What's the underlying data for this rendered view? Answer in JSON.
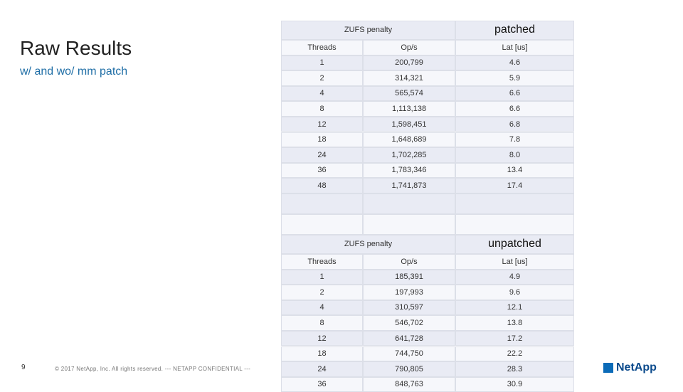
{
  "slide": {
    "title": "Raw Results",
    "subtitle": "w/ and wo/ mm patch",
    "page_number": "9",
    "footer": "© 2017 NetApp, Inc. All rights reserved. --- NETAPP CONFIDENTIAL ---",
    "logo": "NetApp"
  },
  "tables": [
    {
      "caption": "ZUFS penalty",
      "variant": "patched",
      "columns": [
        "Threads",
        "Op/s",
        "Lat [us]"
      ],
      "rows": [
        [
          "1",
          "200,799",
          "4.6"
        ],
        [
          "2",
          "314,321",
          "5.9"
        ],
        [
          "4",
          "565,574",
          "6.6"
        ],
        [
          "8",
          "1,113,138",
          "6.6"
        ],
        [
          "12",
          "1,598,451",
          "6.8"
        ],
        [
          "18",
          "1,648,689",
          "7.8"
        ],
        [
          "24",
          "1,702,285",
          "8.0"
        ],
        [
          "36",
          "1,783,346",
          "13.4"
        ],
        [
          "48",
          "1,741,873",
          "17.4"
        ]
      ]
    },
    {
      "caption": "ZUFS penalty",
      "variant": "unpatched",
      "columns": [
        "Threads",
        "Op/s",
        "Lat [us]"
      ],
      "rows": [
        [
          "1",
          "185,391",
          "4.9"
        ],
        [
          "2",
          "197,993",
          "9.6"
        ],
        [
          "4",
          "310,597",
          "12.1"
        ],
        [
          "8",
          "546,702",
          "13.8"
        ],
        [
          "12",
          "641,728",
          "17.2"
        ],
        [
          "18",
          "744,750",
          "22.2"
        ],
        [
          "24",
          "790,805",
          "28.3"
        ],
        [
          "36",
          "848,763",
          "30.9"
        ]
      ]
    }
  ]
}
